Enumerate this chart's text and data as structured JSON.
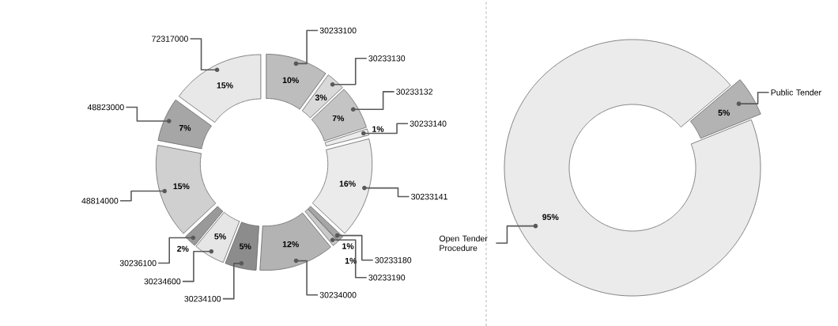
{
  "chart_data": [
    {
      "type": "donut",
      "categories": [
        "30233100",
        "30233130",
        "30233132",
        "30233140",
        "30233141",
        "30233180",
        "30233190",
        "30234000",
        "30234100",
        "30234600",
        "30236100",
        "48814000",
        "48823000",
        "72317000"
      ],
      "values": [
        10,
        3,
        7,
        1,
        16,
        1,
        1,
        12,
        5,
        5,
        2,
        15,
        7,
        15
      ],
      "value_labels": [
        "10%",
        "3%",
        "7%",
        "1%",
        "16%",
        "1%",
        "1%",
        "12%",
        "5%",
        "5%",
        "2%",
        "15%",
        "7%",
        "15%"
      ],
      "colors": [
        "#bdbdbd",
        "#d9d9d9",
        "#c4c4c4",
        "#ececec",
        "#ebebeb",
        "#a6a6a6",
        "#c8c8c8",
        "#b3b3b3",
        "#8c8c8c",
        "#e6e6e6",
        "#999999",
        "#d0d0d0",
        "#a6a6a6",
        "#e8e8e8"
      ]
    },
    {
      "type": "donut",
      "categories": [
        "Public Tender",
        "Open Tender Procedure"
      ],
      "values": [
        5,
        95
      ],
      "value_labels": [
        "5%",
        "95%"
      ],
      "colors": [
        "#b3b3b3",
        "#ebebeb"
      ]
    }
  ]
}
